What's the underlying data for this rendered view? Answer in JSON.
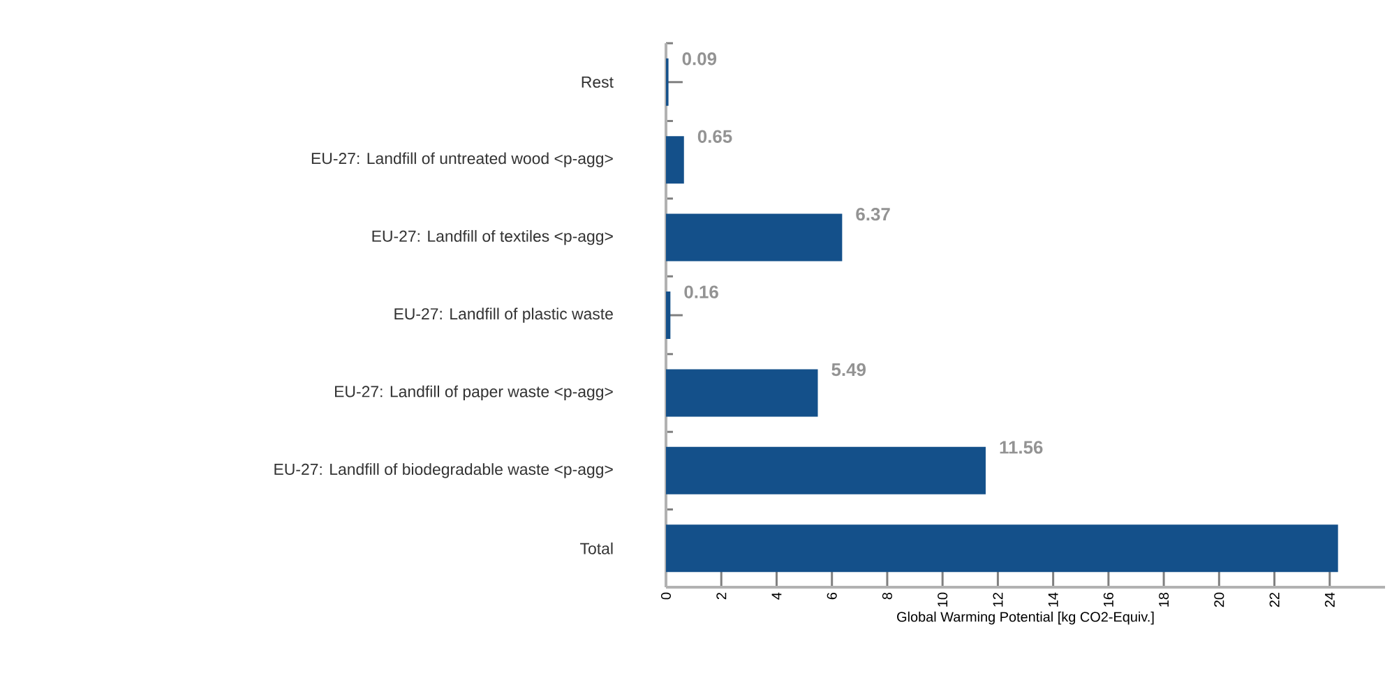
{
  "chart_data": {
    "type": "bar",
    "orientation": "horizontal",
    "xlabel": "Global Warming Potential [kg CO2-Equiv.]",
    "categories": [
      "Rest",
      "EU-27: Landfill of untreated wood <p-agg>",
      "EU-27: Landfill of textiles <p-agg>",
      "EU-27: Landfill of plastic waste",
      "EU-27: Landfill of paper waste <p-agg>",
      "EU-27: Landfill of biodegradable waste <p-agg>",
      "Total"
    ],
    "values": [
      0.09,
      0.65,
      6.37,
      0.16,
      5.49,
      11.56,
      24.3
    ],
    "value_labels": [
      "0.09",
      "0.65",
      "6.37",
      "0.16",
      "5.49",
      "11.56",
      null
    ],
    "color": "#14508a",
    "xlim": [
      0,
      26
    ],
    "xticks": [
      0,
      2,
      4,
      6,
      8,
      10,
      12,
      14,
      16,
      18,
      20,
      22,
      24
    ],
    "grid": false
  }
}
